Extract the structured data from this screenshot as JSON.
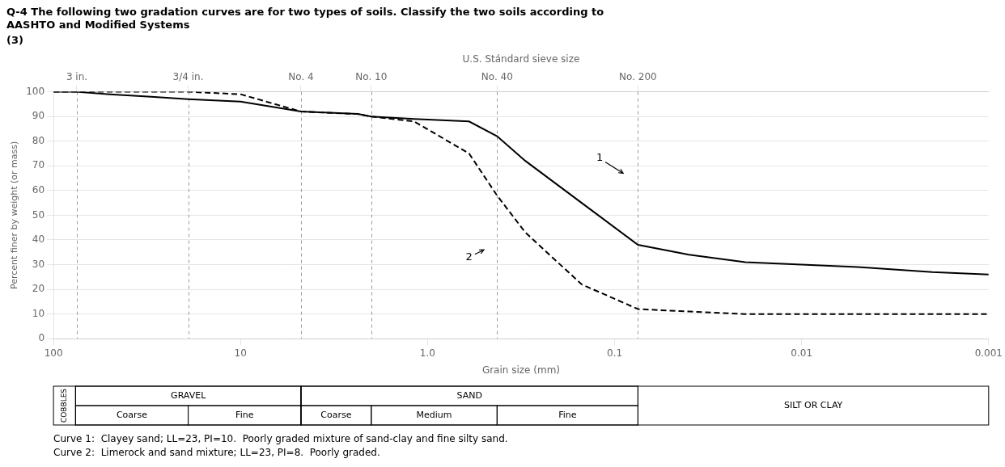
{
  "chart_data": {
    "type": "line",
    "title": [
      "Q-4 The following two gradation curves are for two types of soils. Classify the two soils according to",
      "AASHTO and Modified Systems"
    ],
    "subtitle": "(3)",
    "xlabel": "Grain size (mm)",
    "ylabel": "Percent finer by weight (or mass)",
    "x2label": "U.S. Stándard sieve size",
    "log": "x",
    "xlim": [
      100,
      0.001
    ],
    "ylim": [
      0,
      100
    ],
    "xticks": [
      100,
      10,
      {
        "value": 1.0,
        "label": "1.0"
      },
      0.1,
      0.01,
      0.001
    ],
    "x2ticks": [
      {
        "value": 75.0,
        "label": "3 in."
      },
      {
        "value": 19.05,
        "label": "3/4 in."
      },
      {
        "value": 4.75,
        "label": "No. 4"
      },
      {
        "value": 2.0,
        "label": "No. 10"
      },
      {
        "value": 0.425,
        "label": "No. 40"
      },
      {
        "value": 0.075,
        "label": "No. 200"
      }
    ],
    "yticks": [
      0,
      10,
      20,
      30,
      40,
      50,
      60,
      70,
      80,
      90,
      100
    ],
    "grid": true,
    "series": [
      {
        "x": [
          100,
          76,
          50,
          30,
          19.05,
          10,
          4.75,
          2.36,
          2.0,
          1.18,
          0.6,
          0.425,
          0.3,
          0.15,
          0.075,
          0.04,
          0.02,
          0.01,
          0.005,
          0.002,
          0.001
        ],
        "values": [
          100,
          100,
          99,
          98,
          97,
          96,
          92,
          91,
          90,
          89,
          88,
          82,
          72,
          55,
          38,
          34,
          31,
          30,
          29,
          27,
          26
        ],
        "color": "#000000",
        "line_style": "solid"
      },
      {
        "x": [
          100,
          76,
          50,
          30,
          19.05,
          10,
          4.75,
          2.36,
          2.0,
          1.18,
          0.6,
          0.425,
          0.3,
          0.15,
          0.075,
          0.04,
          0.02,
          0.01,
          0.005,
          0.002,
          0.001
        ],
        "values": [
          100,
          100,
          100,
          100,
          100,
          99,
          92,
          91,
          90,
          88,
          75,
          58,
          43,
          22,
          12,
          11,
          10,
          10,
          10,
          10,
          10
        ],
        "color": "#000000",
        "line_style": "dashed"
      }
    ],
    "annotations": [
      {
        "text": "1",
        "x": 0.12,
        "y": 73,
        "arrow_to": [
          0.09,
          67
        ]
      },
      {
        "text": "2",
        "x": 0.6,
        "y": 33,
        "arrow_to": [
          0.5,
          36
        ]
      }
    ],
    "classification_table": [
      {
        "label": "COBBLES",
        "from": 100,
        "to": 76.2
      },
      {
        "label": "GRAVEL",
        "from": 76.2,
        "to": 4.75,
        "parts": [
          {
            "label": "Coarse",
            "from": 76.2,
            "to": 19.05
          },
          {
            "label": "Fine",
            "from": 19.05,
            "to": 4.75
          }
        ]
      },
      {
        "label": "SAND",
        "from": 4.75,
        "to": 0.075,
        "parts": [
          {
            "label": "Coarse",
            "from": 4.75,
            "to": 2.0
          },
          {
            "label": "Medium",
            "from": 2.0,
            "to": 0.425
          },
          {
            "label": "Fine",
            "from": 0.425,
            "to": 0.075
          }
        ]
      },
      {
        "label": "SILT OR CLAY",
        "from": 0.075,
        "to": 0.001
      }
    ],
    "captions": [
      "Curve 1:  Clayey sand; LL=23, PI=10.  Poorly graded mixture of sand-clay and fine silty sand.",
      "Curve 2:  Limerock and sand mixture; LL=23, PI=8.  Poorly graded."
    ]
  }
}
